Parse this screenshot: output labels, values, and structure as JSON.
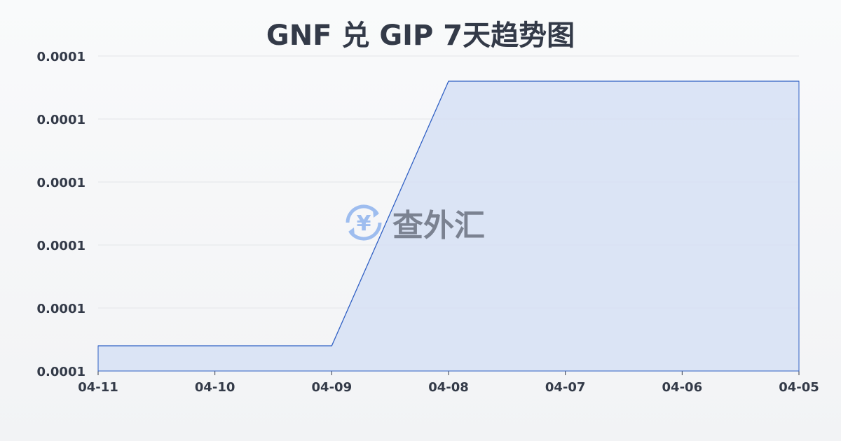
{
  "chart_data": {
    "type": "area",
    "title": "GNF 兑 GIP 7天趋势图",
    "categories": [
      "04-11",
      "04-10",
      "04-09",
      "04-08",
      "04-07",
      "04-06",
      "04-05"
    ],
    "series": [
      {
        "values": [
          9.44e-05,
          9.44e-05,
          9.44e-05,
          9.86e-05,
          9.86e-05,
          9.86e-05,
          9.86e-05
        ]
      }
    ],
    "ylim": [
      9.4e-05,
      9.9e-05
    ],
    "yticks": [
      9.4e-05,
      9.5e-05,
      9.6e-05,
      9.7e-05,
      9.8e-05,
      9.9e-05
    ],
    "ytick_labels": [
      "0.0001",
      "0.0001",
      "0.0001",
      "0.0001",
      "0.0001",
      "0.0001"
    ],
    "grid": true,
    "colors": {
      "line": "#2f5fc4",
      "fill": "#d6e0f5",
      "text": "#333a48",
      "grid": "#e3e5e8"
    }
  },
  "watermark": {
    "text": "查外汇",
    "icon": "yen-exchange-icon",
    "color": "#8fb4ee"
  }
}
